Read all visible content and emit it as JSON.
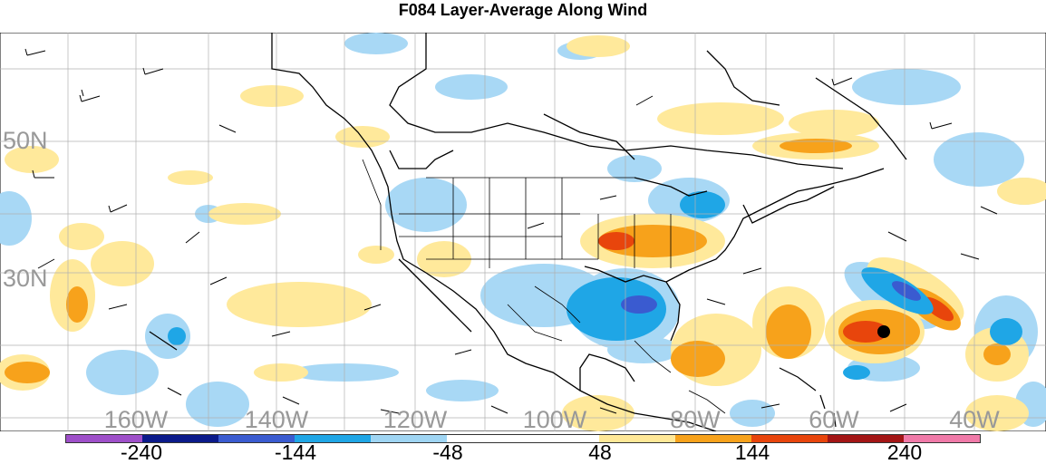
{
  "title": "F084 Layer-Average Along Wind",
  "map": {
    "lat_labels": [
      "50N",
      "30N"
    ],
    "lon_labels": [
      "160W",
      "140W",
      "120W",
      "100W",
      "80W",
      "60W",
      "40W"
    ]
  },
  "colorbar": {
    "colors": [
      "#9e4fc9",
      "#0b1a8a",
      "#3a5bd0",
      "#1fa6e6",
      "#9fd5f3",
      "#ffffff",
      "#ffffff",
      "#ffe897",
      "#f7a21b",
      "#e8450c",
      "#a31515",
      "#f07aa8"
    ],
    "labels": [
      "-240",
      "-144",
      "-48",
      "48",
      "144",
      "240"
    ]
  }
}
